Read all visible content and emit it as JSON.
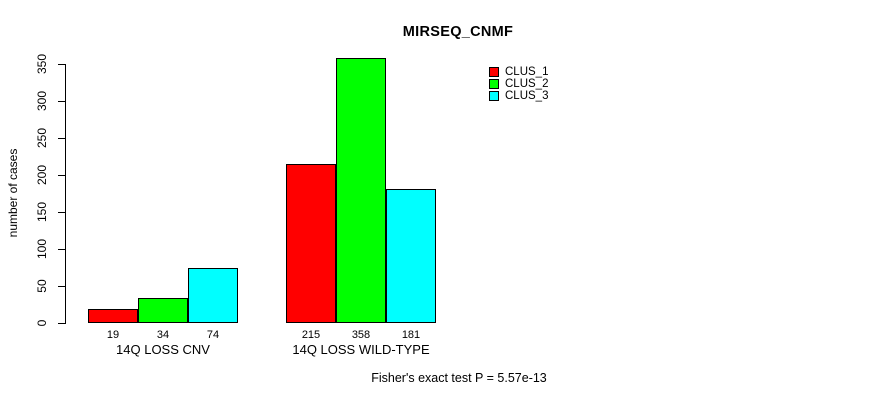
{
  "chart_data": {
    "type": "bar",
    "title": "MIRSEQ_CNMF",
    "ylabel": "number of cases",
    "xlabel": "",
    "categories": [
      "14Q LOSS CNV",
      "14Q LOSS WILD-TYPE"
    ],
    "series": [
      {
        "name": "CLUS_1",
        "color": "#FF0000",
        "values": [
          19,
          215
        ]
      },
      {
        "name": "CLUS_2",
        "color": "#00FF00",
        "values": [
          34,
          358
        ]
      },
      {
        "name": "CLUS_3",
        "color": "#00FFFF",
        "values": [
          74,
          181
        ]
      }
    ],
    "bar_value_labels": [
      [
        19,
        34,
        74
      ],
      [
        215,
        358,
        181
      ]
    ],
    "ylim": [
      0,
      350
    ],
    "yticks": [
      0,
      50,
      100,
      150,
      200,
      250,
      300,
      350
    ],
    "grid": false,
    "legend_position": "top-right",
    "footer": "Fisher's exact test P = 5.57e-13"
  }
}
